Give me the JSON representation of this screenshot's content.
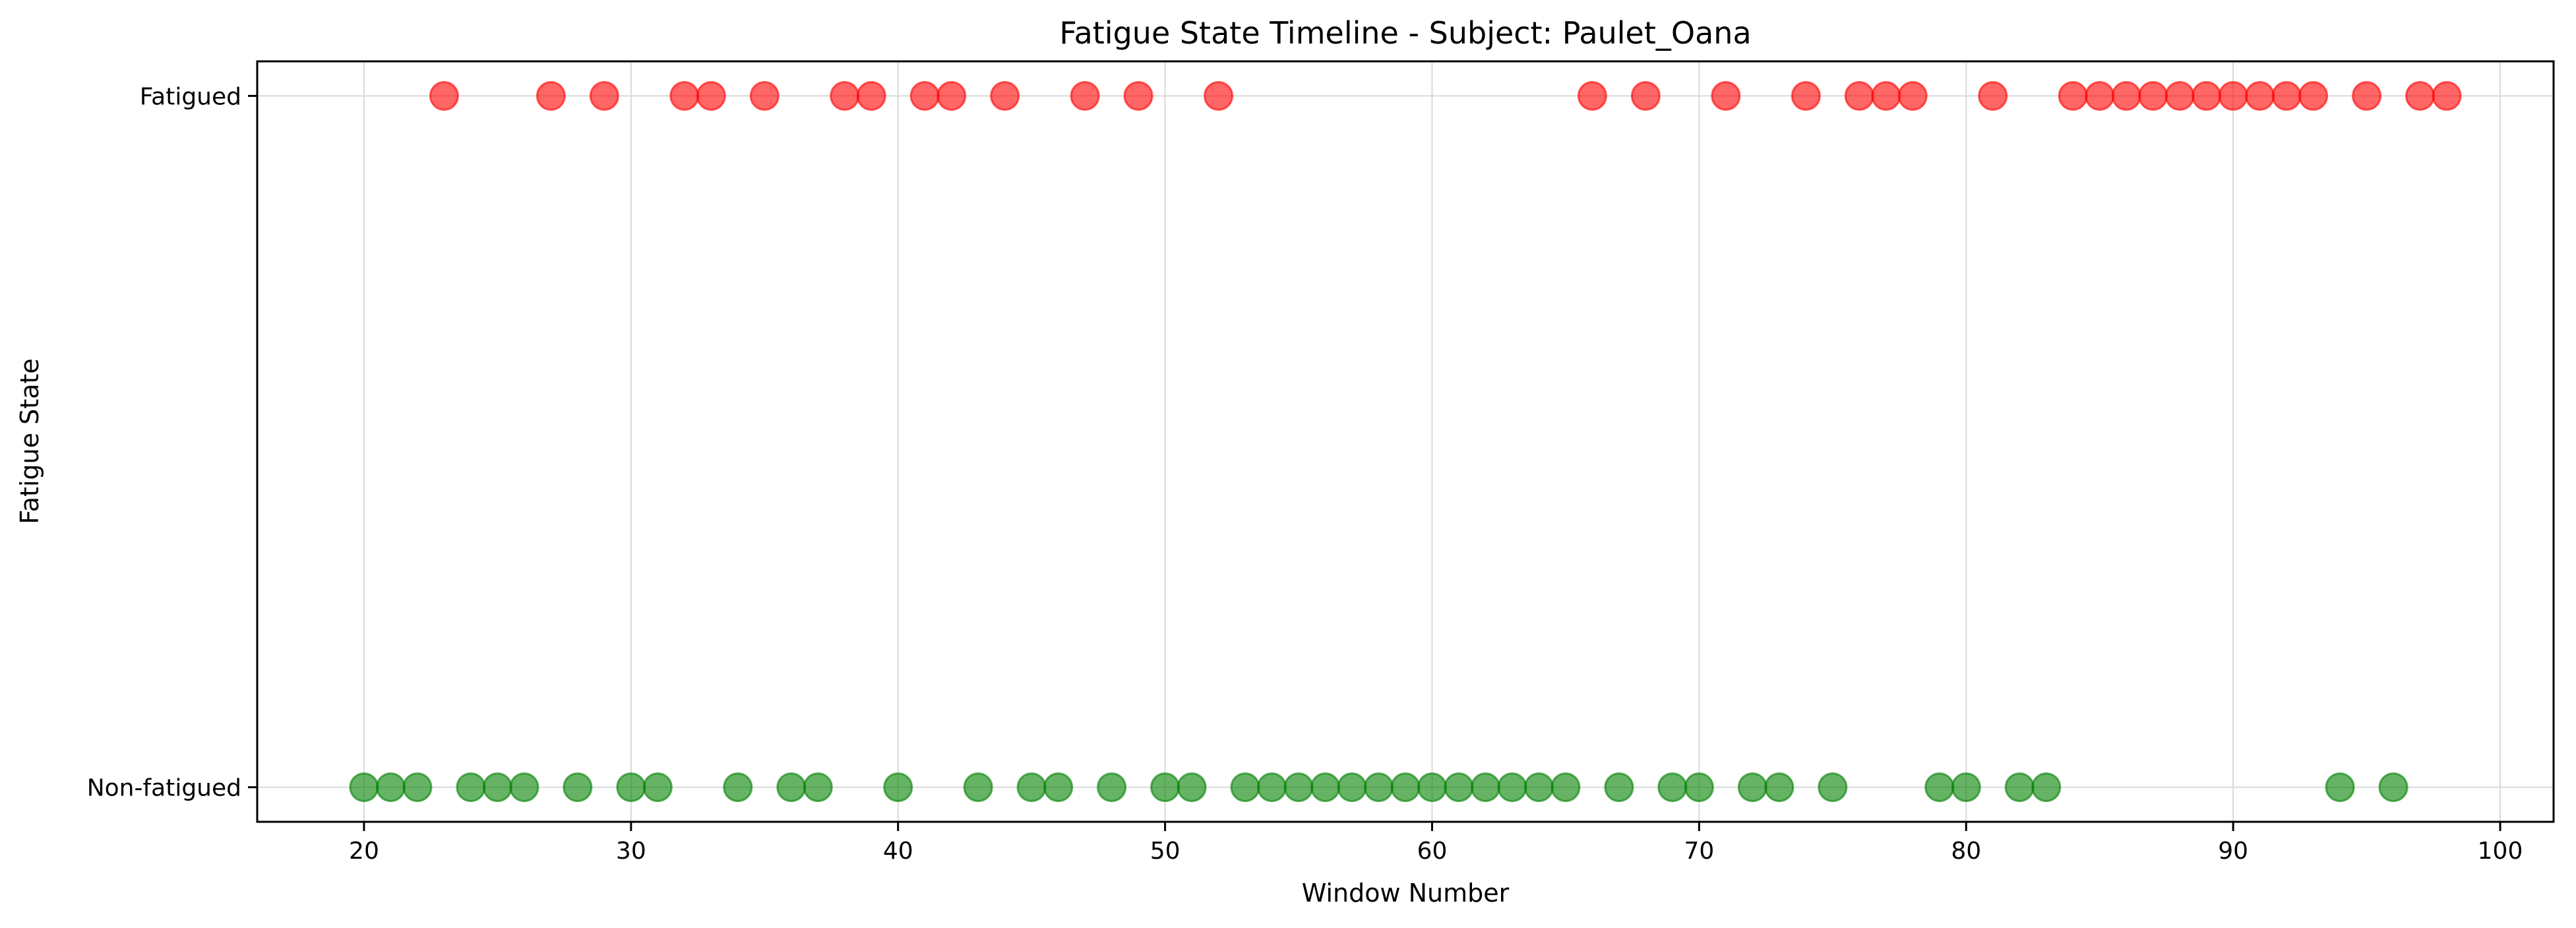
{
  "chart_data": {
    "type": "scatter",
    "title": "Fatigue State Timeline - Subject: Paulet_Oana",
    "xlabel": "Window Number",
    "ylabel": "Fatigue State",
    "xlim": [
      16,
      102
    ],
    "xticks": [
      20,
      30,
      40,
      50,
      60,
      70,
      80,
      90,
      100
    ],
    "ylim": [
      -0.05,
      1.05
    ],
    "yticks": [
      {
        "value": 0,
        "label": "Non-fatigued"
      },
      {
        "value": 1,
        "label": "Fatigued"
      }
    ],
    "grid": true,
    "series": [
      {
        "color": "#ff0000",
        "y": 1,
        "x": [
          23,
          27,
          29,
          32,
          33,
          35,
          38,
          39,
          41,
          42,
          44,
          47,
          49,
          52,
          66,
          68,
          71,
          74,
          76,
          77,
          78,
          81,
          84,
          85,
          86,
          87,
          88,
          89,
          90,
          91,
          92,
          93,
          95,
          97,
          98
        ]
      },
      {
        "color": "#008000",
        "y": 0,
        "x": [
          20,
          21,
          22,
          24,
          25,
          26,
          28,
          30,
          31,
          34,
          36,
          37,
          40,
          43,
          45,
          46,
          48,
          50,
          51,
          53,
          54,
          55,
          56,
          57,
          58,
          59,
          60,
          61,
          62,
          63,
          64,
          65,
          67,
          69,
          70,
          72,
          73,
          75,
          79,
          80,
          82,
          83,
          94,
          96
        ]
      }
    ]
  }
}
